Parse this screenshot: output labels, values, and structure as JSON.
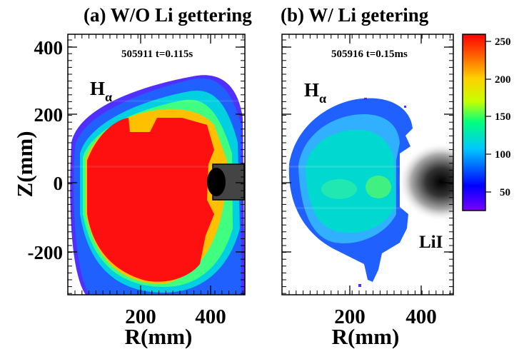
{
  "panels": [
    {
      "title": "(a) W/O Li gettering",
      "shot_label": "505911 t=0.115s",
      "emission_label": "H",
      "emission_subscript": "α"
    },
    {
      "title": "(b) W/ Li getering",
      "shot_label": "505916 t=0.15ms",
      "emission_label": "H",
      "emission_subscript": "α",
      "lithium_label": "LiI"
    }
  ],
  "axes": {
    "ylabel": "Z(mm)",
    "xlabel": "R(mm)",
    "y_ticks": [
      "400",
      "200",
      "0",
      "-200"
    ],
    "x_ticks": [
      "200",
      "400"
    ]
  },
  "colorbar": {
    "ticks": [
      "250",
      "200",
      "150",
      "100",
      "50"
    ],
    "range": [
      30,
      260
    ],
    "colors": [
      "#7a00ff",
      "#0000ff",
      "#00c8ff",
      "#00ff80",
      "#c8ff00",
      "#ffd000",
      "#ff6000",
      "#ff0000"
    ]
  }
}
